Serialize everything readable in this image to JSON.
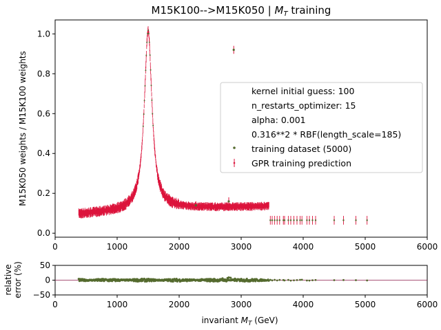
{
  "chart_data": [
    {
      "type": "scatter",
      "title": "M15K100-->M15K050 | $M_T$ training",
      "title_text": "M15K100-->M15K050 | ",
      "title_math": "M",
      "title_math_sub": "T",
      "title_suffix": " training",
      "xlabel": "",
      "ylabel": "M15K050 weights / M15K100 weights",
      "xlim": [
        0,
        6000
      ],
      "ylim": [
        -0.02,
        1.07
      ],
      "xticks": [
        "0",
        "1000",
        "2000",
        "3000",
        "4000",
        "5000",
        "6000"
      ],
      "yticks": [
        "0.0",
        "0.2",
        "0.4",
        "0.6",
        "0.8",
        "1.0"
      ],
      "grid": false,
      "legend_position": "center-right",
      "legend": [
        "kernel initial guess: 100",
        "n_restarts_optimizer: 15",
        "alpha: 0.001",
        "0.316**2 * RBF(length_scale=185)",
        "training dataset (5000)",
        "GPR training prediction"
      ],
      "series": [
        {
          "name": "training dataset (5000)",
          "color": "#556b2f",
          "description_points": [
            [
              380,
              0.1
            ],
            [
              600,
              0.11
            ],
            [
              800,
              0.13
            ],
            [
              1000,
              0.18
            ],
            [
              1100,
              0.23
            ],
            [
              1200,
              0.32
            ],
            [
              1300,
              0.48
            ],
            [
              1400,
              0.78
            ],
            [
              1450,
              0.92
            ],
            [
              1500,
              1.0
            ],
            [
              1550,
              0.92
            ],
            [
              1600,
              0.68
            ],
            [
              1700,
              0.35
            ],
            [
              1800,
              0.23
            ],
            [
              2000,
              0.15
            ],
            [
              2200,
              0.12
            ],
            [
              2270,
              0.14
            ],
            [
              2500,
              0.1
            ],
            [
              2800,
              0.16
            ],
            [
              2880,
              0.92
            ],
            [
              3000,
              0.08
            ],
            [
              3400,
              0.07
            ],
            [
              3700,
              0.07
            ],
            [
              4000,
              0.06
            ],
            [
              4200,
              0.06
            ],
            [
              4500,
              0.06
            ],
            [
              4650,
              0.06
            ],
            [
              4850,
              0.06
            ],
            [
              5030,
              0.06
            ]
          ]
        },
        {
          "name": "GPR training prediction",
          "color": "#dc143c"
        }
      ]
    },
    {
      "type": "scatter",
      "xlabel": "invariant $M_T$ (GeV)",
      "xlabel_text": "invariant ",
      "xlabel_math": "M",
      "xlabel_math_sub": "T",
      "xlabel_suffix": " (GeV)",
      "ylabel_line1": "relative",
      "ylabel_line2": "error (%)",
      "xlim": [
        0,
        6000
      ],
      "ylim": [
        -50,
        50
      ],
      "xticks": [
        "0",
        "1000",
        "2000",
        "3000",
        "4000",
        "5000",
        "6000"
      ],
      "yticks": [
        "50",
        "0",
        "−50"
      ],
      "reference_line": 0,
      "reference_color": "#8b1a4a",
      "series": [
        {
          "color": "#556b2f",
          "outliers": [
            [
              2700,
              6
            ],
            [
              2780,
              7
            ],
            [
              2800,
              9
            ],
            [
              2760,
              -4
            ],
            [
              2830,
              8
            ],
            [
              2900,
              5
            ],
            [
              3000,
              4
            ]
          ]
        }
      ]
    }
  ]
}
